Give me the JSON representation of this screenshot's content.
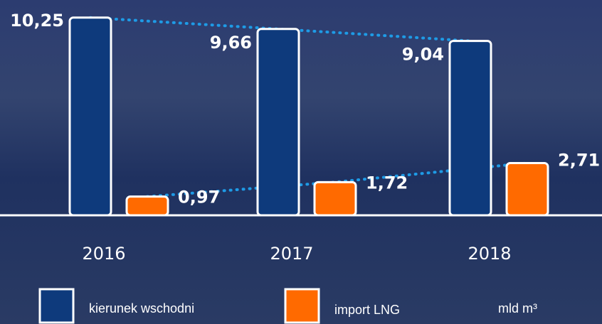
{
  "chart_data": {
    "type": "bar",
    "categories": [
      "2016",
      "2017",
      "2018"
    ],
    "series": [
      {
        "name": "kierunek wschodni",
        "color": "#0e3a7c",
        "values": [
          10.25,
          9.66,
          9.04
        ],
        "value_labels": [
          "10,25",
          "9,66",
          "9,04"
        ]
      },
      {
        "name": "import LNG",
        "color": "#ff6a00",
        "values": [
          0.97,
          1.72,
          2.71
        ],
        "value_labels": [
          "0,97",
          "1,72",
          "2,71"
        ]
      }
    ],
    "unit": "mld m³",
    "ylim": [
      0,
      10.5
    ],
    "trend_line_color": "#1e9be6"
  }
}
